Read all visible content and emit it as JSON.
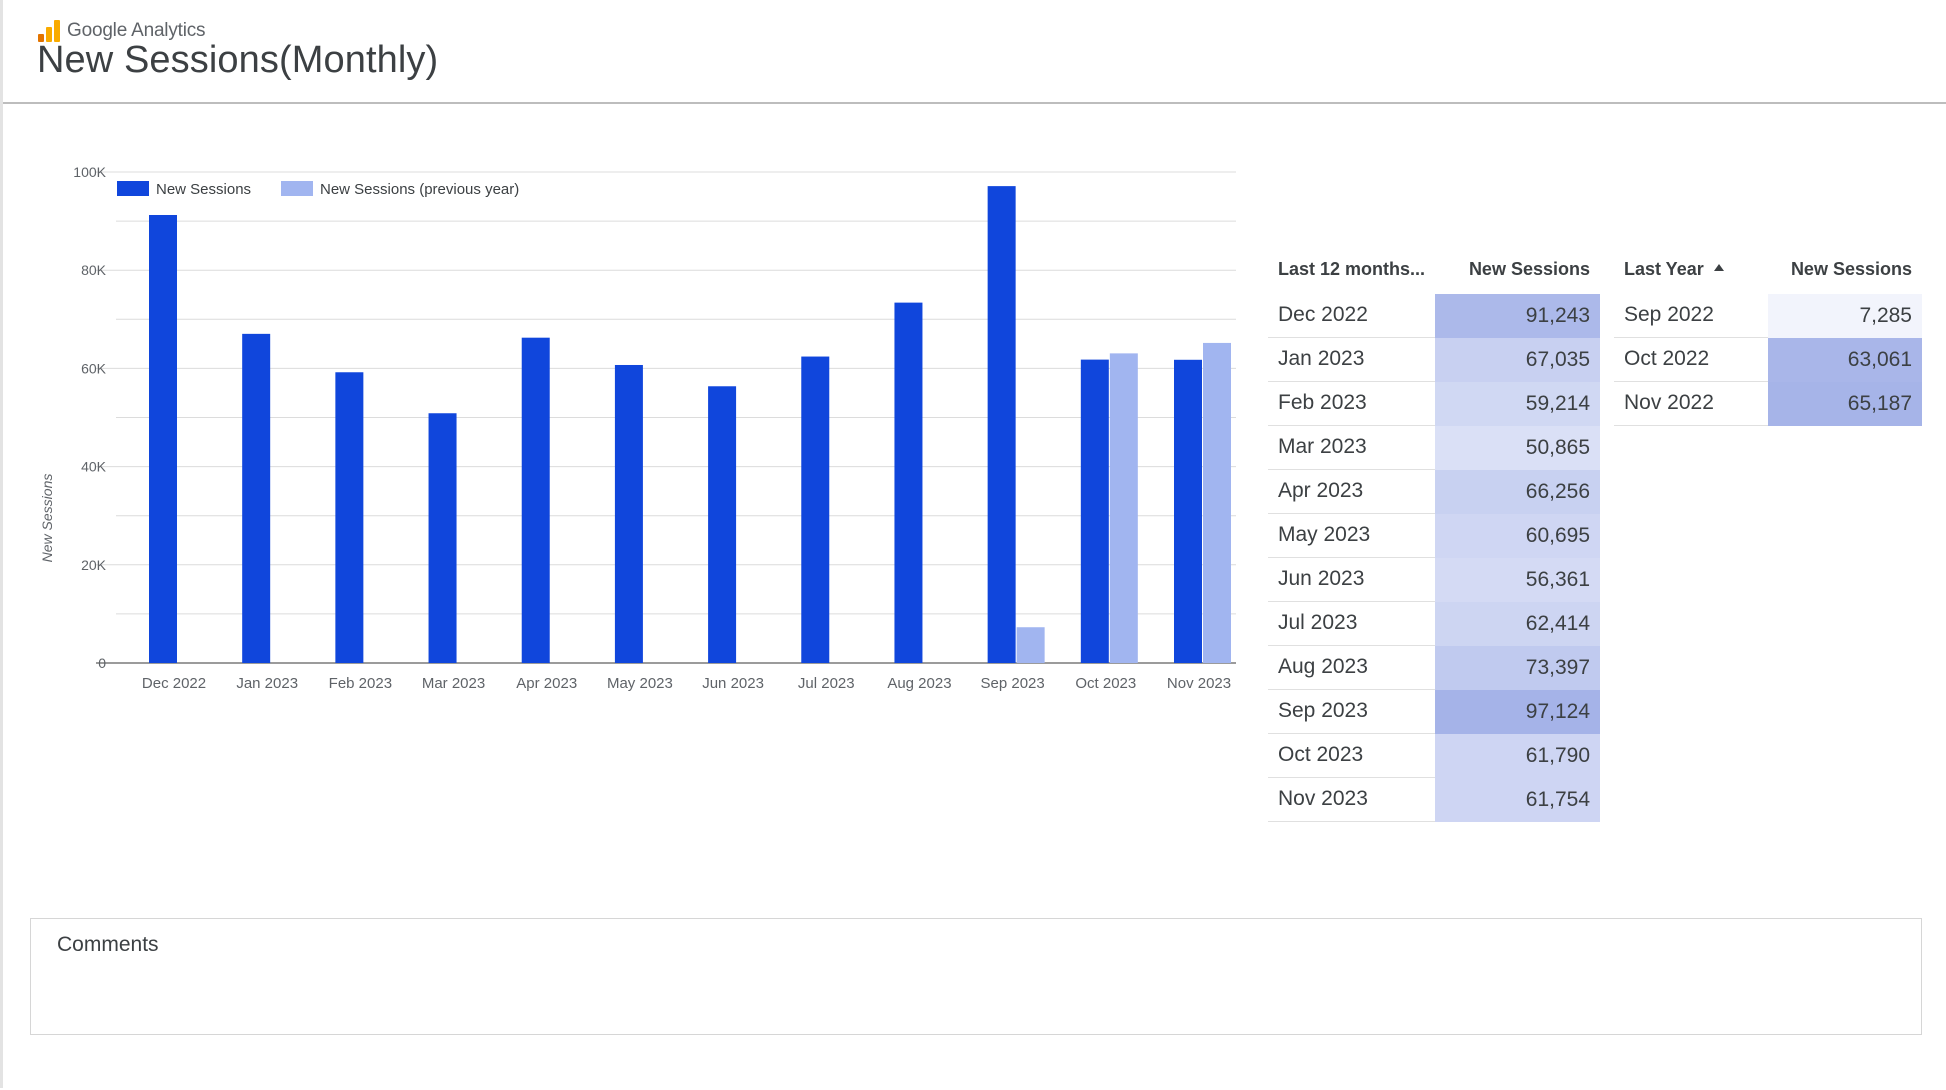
{
  "header": {
    "brand": "Google Analytics",
    "title": "New Sessions(Monthly)"
  },
  "colors": {
    "current": "#1046dc",
    "previous": "#a1b5f0",
    "heat_strong": "#a5b3e8",
    "heat_light": "#f2f4fc"
  },
  "chart_data": {
    "type": "bar",
    "title": "",
    "xlabel": "",
    "ylabel": "New Sessions",
    "ylim": [
      0,
      100000
    ],
    "yticks": [
      {
        "value": 0,
        "label": "0"
      },
      {
        "value": 20000,
        "label": "20K"
      },
      {
        "value": 40000,
        "label": "40K"
      },
      {
        "value": 60000,
        "label": "60K"
      },
      {
        "value": 80000,
        "label": "80K"
      },
      {
        "value": 100000,
        "label": "100K"
      }
    ],
    "categories": [
      "Dec 2022",
      "Jan 2023",
      "Feb 2023",
      "Mar 2023",
      "Apr 2023",
      "May 2023",
      "Jun 2023",
      "Jul 2023",
      "Aug 2023",
      "Sep 2023",
      "Oct 2023",
      "Nov 2023"
    ],
    "series": [
      {
        "name": "New Sessions",
        "color": "#1046dc",
        "values": [
          91243,
          67035,
          59214,
          50865,
          66256,
          60695,
          56361,
          62414,
          73397,
          97124,
          61790,
          61754
        ]
      },
      {
        "name": "New Sessions (previous year)",
        "color": "#a1b5f0",
        "values": [
          null,
          null,
          null,
          null,
          null,
          null,
          null,
          null,
          null,
          7285,
          63061,
          65187
        ]
      }
    ],
    "grid": true,
    "legend": "top-left"
  },
  "table_current": {
    "headers": [
      "Last 12 months...",
      "New Sessions"
    ],
    "rows": [
      {
        "month": "Dec 2022",
        "value": "91,243",
        "num": 91243
      },
      {
        "month": "Jan 2023",
        "value": "67,035",
        "num": 67035
      },
      {
        "month": "Feb 2023",
        "value": "59,214",
        "num": 59214
      },
      {
        "month": "Mar 2023",
        "value": "50,865",
        "num": 50865
      },
      {
        "month": "Apr 2023",
        "value": "66,256",
        "num": 66256
      },
      {
        "month": "May 2023",
        "value": "60,695",
        "num": 60695
      },
      {
        "month": "Jun 2023",
        "value": "56,361",
        "num": 56361
      },
      {
        "month": "Jul 2023",
        "value": "62,414",
        "num": 62414
      },
      {
        "month": "Aug 2023",
        "value": "73,397",
        "num": 73397
      },
      {
        "month": "Sep 2023",
        "value": "97,124",
        "num": 97124
      },
      {
        "month": "Oct 2023",
        "value": "61,790",
        "num": 61790
      },
      {
        "month": "Nov 2023",
        "value": "61,754",
        "num": 61754
      }
    ]
  },
  "table_previous": {
    "headers": [
      "Last Year",
      "New Sessions"
    ],
    "sort_icon": "sort-ascending-icon",
    "rows": [
      {
        "month": "Sep 2022",
        "value": "7,285",
        "num": 7285
      },
      {
        "month": "Oct 2022",
        "value": "63,061",
        "num": 63061
      },
      {
        "month": "Nov 2022",
        "value": "65,187",
        "num": 65187
      }
    ]
  },
  "comments": {
    "label": "Comments"
  }
}
